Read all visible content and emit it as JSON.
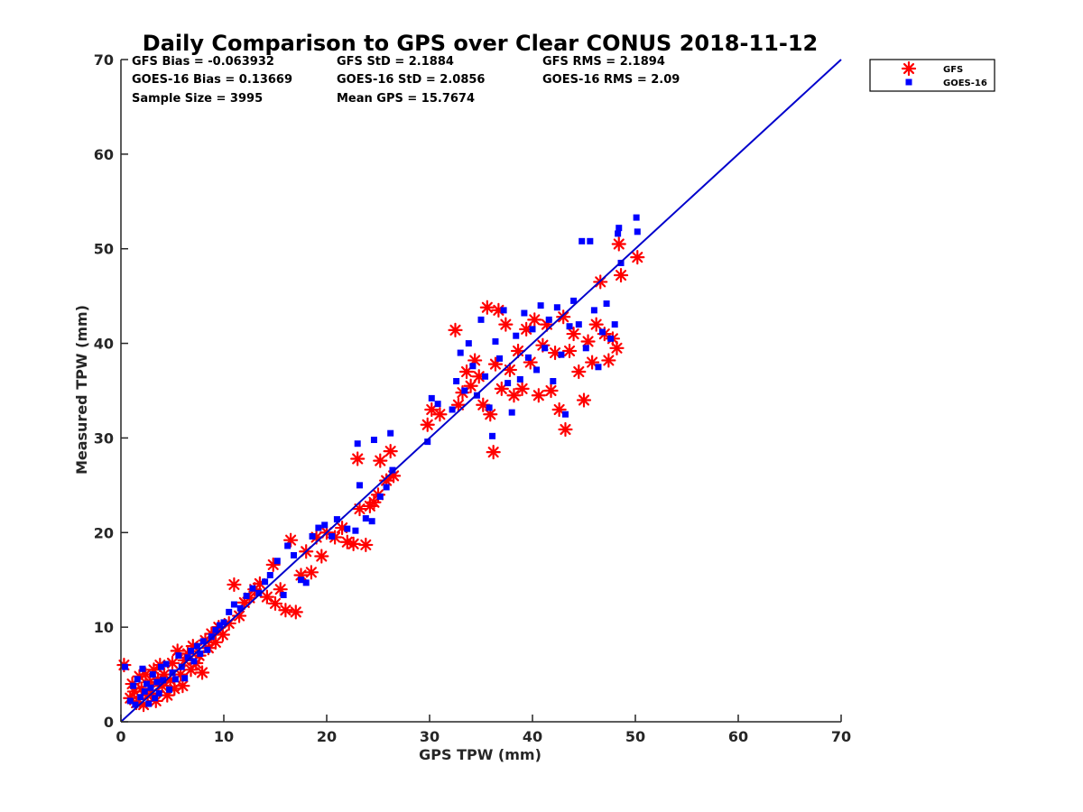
{
  "chart_data": {
    "type": "scatter",
    "title": "Daily Comparison to GPS over Clear CONUS 2018-11-12",
    "xlabel": "GPS TPW (mm)",
    "ylabel": "Measured TPW (mm)",
    "xlim": [
      0,
      70
    ],
    "ylim": [
      0,
      70
    ],
    "xticks": [
      "0",
      "10",
      "20",
      "30",
      "40",
      "50",
      "60",
      "70"
    ],
    "yticks": [
      "0",
      "10",
      "20",
      "30",
      "40",
      "50",
      "60",
      "70"
    ],
    "stats": [
      [
        "GFS Bias = -0.063932",
        "GFS StD = 2.1884",
        "GFS RMS = 2.1894"
      ],
      [
        "GOES-16 Bias = 0.13669",
        "GOES-16 StD = 2.0856",
        "GOES-16 RMS = 2.09"
      ],
      [
        "Sample Size = 3995",
        "Mean GPS = 15.7674",
        ""
      ]
    ],
    "legend": {
      "position": "outside-top-right"
    },
    "reference_line": {
      "name": "1:1 line",
      "color": "#0000cc",
      "points": [
        [
          0,
          0
        ],
        [
          70,
          70
        ]
      ]
    },
    "series": [
      {
        "name": "GFS",
        "marker": "asterisk",
        "color": "#ff0000",
        "points": [
          [
            0.3,
            6.0
          ],
          [
            0.9,
            2.5
          ],
          [
            1.1,
            4.0
          ],
          [
            1.3,
            3.2
          ],
          [
            1.5,
            2.0
          ],
          [
            1.8,
            4.8
          ],
          [
            2.0,
            3.5
          ],
          [
            2.2,
            1.8
          ],
          [
            2.4,
            5.0
          ],
          [
            2.6,
            2.8
          ],
          [
            2.8,
            4.2
          ],
          [
            3.0,
            3.0
          ],
          [
            3.2,
            5.5
          ],
          [
            3.4,
            2.2
          ],
          [
            3.6,
            4.5
          ],
          [
            3.8,
            6.0
          ],
          [
            4.0,
            3.8
          ],
          [
            4.2,
            5.0
          ],
          [
            4.5,
            2.8
          ],
          [
            4.8,
            4.4
          ],
          [
            5.0,
            6.2
          ],
          [
            5.2,
            3.5
          ],
          [
            5.5,
            7.5
          ],
          [
            5.8,
            5.0
          ],
          [
            6.0,
            3.8
          ],
          [
            6.2,
            6.5
          ],
          [
            6.5,
            7.2
          ],
          [
            6.8,
            5.5
          ],
          [
            7.0,
            8.0
          ],
          [
            7.3,
            6.2
          ],
          [
            7.6,
            7.0
          ],
          [
            7.9,
            5.2
          ],
          [
            8.2,
            8.6
          ],
          [
            8.5,
            7.8
          ],
          [
            8.8,
            9.3
          ],
          [
            9.2,
            8.4
          ],
          [
            9.5,
            10.0
          ],
          [
            9.9,
            9.2
          ],
          [
            10.5,
            10.4
          ],
          [
            11.0,
            14.5
          ],
          [
            11.5,
            11.2
          ],
          [
            12.0,
            12.6
          ],
          [
            12.5,
            13.1
          ],
          [
            13.0,
            14.0
          ],
          [
            13.5,
            14.6
          ],
          [
            14.2,
            13.2
          ],
          [
            14.8,
            16.6
          ],
          [
            15.0,
            12.5
          ],
          [
            15.5,
            14.0
          ],
          [
            16.0,
            11.8
          ],
          [
            16.5,
            19.2
          ],
          [
            17.0,
            11.6
          ],
          [
            17.5,
            15.5
          ],
          [
            18.0,
            18.0
          ],
          [
            18.5,
            15.8
          ],
          [
            19.0,
            19.5
          ],
          [
            19.5,
            17.5
          ],
          [
            20.0,
            20.0
          ],
          [
            20.8,
            19.5
          ],
          [
            21.5,
            20.5
          ],
          [
            22.0,
            19.0
          ],
          [
            22.6,
            18.8
          ],
          [
            23.0,
            27.8
          ],
          [
            23.2,
            22.5
          ],
          [
            23.8,
            18.7
          ],
          [
            24.2,
            22.8
          ],
          [
            24.6,
            23.2
          ],
          [
            25.0,
            24.0
          ],
          [
            25.2,
            27.6
          ],
          [
            25.8,
            25.5
          ],
          [
            26.2,
            28.6
          ],
          [
            26.5,
            26.0
          ],
          [
            29.8,
            31.4
          ],
          [
            30.2,
            33.0
          ],
          [
            31.0,
            32.5
          ],
          [
            32.5,
            41.4
          ],
          [
            32.8,
            33.5
          ],
          [
            33.2,
            34.8
          ],
          [
            33.6,
            37.0
          ],
          [
            34.0,
            35.5
          ],
          [
            34.4,
            38.2
          ],
          [
            34.8,
            36.5
          ],
          [
            35.2,
            33.5
          ],
          [
            35.6,
            43.8
          ],
          [
            35.9,
            32.5
          ],
          [
            36.2,
            28.5
          ],
          [
            36.4,
            37.8
          ],
          [
            36.7,
            43.5
          ],
          [
            37.0,
            35.2
          ],
          [
            37.4,
            42.0
          ],
          [
            37.8,
            37.2
          ],
          [
            38.2,
            34.5
          ],
          [
            38.6,
            39.2
          ],
          [
            39.0,
            35.2
          ],
          [
            39.4,
            41.5
          ],
          [
            39.8,
            38.0
          ],
          [
            40.2,
            42.5
          ],
          [
            40.6,
            34.5
          ],
          [
            41.0,
            39.8
          ],
          [
            41.4,
            42.0
          ],
          [
            41.8,
            35.0
          ],
          [
            42.2,
            39.0
          ],
          [
            42.6,
            33.0
          ],
          [
            43.0,
            42.8
          ],
          [
            43.2,
            30.9
          ],
          [
            43.6,
            39.2
          ],
          [
            44.0,
            41.0
          ],
          [
            44.5,
            37.0
          ],
          [
            45.0,
            34.0
          ],
          [
            45.4,
            40.2
          ],
          [
            45.8,
            38.0
          ],
          [
            46.2,
            42.0
          ],
          [
            46.6,
            46.5
          ],
          [
            47.0,
            41.0
          ],
          [
            47.4,
            38.2
          ],
          [
            47.8,
            40.5
          ],
          [
            48.2,
            39.5
          ],
          [
            48.4,
            50.5
          ],
          [
            48.6,
            47.2
          ],
          [
            50.2,
            49.1
          ]
        ]
      },
      {
        "name": "GOES-16",
        "marker": "square",
        "color": "#0000ff",
        "points": [
          [
            0.4,
            5.8
          ],
          [
            0.9,
            2.2
          ],
          [
            1.2,
            3.8
          ],
          [
            1.4,
            1.8
          ],
          [
            1.6,
            4.5
          ],
          [
            1.9,
            2.6
          ],
          [
            2.1,
            5.6
          ],
          [
            2.3,
            3.2
          ],
          [
            2.5,
            4.0
          ],
          [
            2.7,
            1.9
          ],
          [
            2.9,
            3.6
          ],
          [
            3.1,
            5.0
          ],
          [
            3.3,
            2.5
          ],
          [
            3.5,
            4.2
          ],
          [
            3.7,
            3.0
          ],
          [
            3.9,
            5.8
          ],
          [
            4.1,
            4.4
          ],
          [
            4.4,
            6.1
          ],
          [
            4.7,
            3.4
          ],
          [
            5.0,
            5.2
          ],
          [
            5.3,
            4.5
          ],
          [
            5.6,
            7.0
          ],
          [
            5.9,
            5.8
          ],
          [
            6.2,
            4.6
          ],
          [
            6.5,
            6.8
          ],
          [
            6.8,
            7.5
          ],
          [
            7.1,
            6.4
          ],
          [
            7.4,
            8.0
          ],
          [
            7.7,
            7.2
          ],
          [
            8.0,
            8.5
          ],
          [
            8.4,
            7.6
          ],
          [
            8.8,
            9.0
          ],
          [
            9.2,
            9.7
          ],
          [
            9.6,
            10.2
          ],
          [
            10.0,
            10.5
          ],
          [
            10.5,
            11.6
          ],
          [
            11.0,
            12.4
          ],
          [
            11.6,
            12.0
          ],
          [
            12.2,
            13.3
          ],
          [
            12.8,
            14.1
          ],
          [
            13.4,
            13.6
          ],
          [
            14.0,
            14.8
          ],
          [
            14.5,
            15.5
          ],
          [
            15.2,
            17.0
          ],
          [
            15.8,
            13.4
          ],
          [
            16.2,
            18.6
          ],
          [
            16.8,
            17.6
          ],
          [
            17.5,
            15.0
          ],
          [
            18.0,
            14.7
          ],
          [
            18.6,
            19.6
          ],
          [
            19.2,
            20.5
          ],
          [
            19.8,
            20.8
          ],
          [
            20.5,
            19.6
          ],
          [
            21.0,
            21.4
          ],
          [
            22.0,
            20.4
          ],
          [
            22.8,
            20.2
          ],
          [
            23.0,
            29.4
          ],
          [
            23.2,
            25.0
          ],
          [
            23.8,
            21.5
          ],
          [
            24.4,
            21.2
          ],
          [
            24.6,
            29.8
          ],
          [
            25.2,
            23.8
          ],
          [
            25.8,
            24.8
          ],
          [
            26.2,
            30.5
          ],
          [
            26.4,
            26.6
          ],
          [
            29.8,
            29.6
          ],
          [
            30.2,
            34.2
          ],
          [
            30.8,
            33.6
          ],
          [
            32.2,
            33.0
          ],
          [
            32.6,
            36.0
          ],
          [
            33.0,
            39.0
          ],
          [
            33.4,
            35.0
          ],
          [
            33.8,
            40.0
          ],
          [
            34.2,
            37.6
          ],
          [
            34.6,
            34.5
          ],
          [
            35.0,
            42.5
          ],
          [
            35.4,
            36.5
          ],
          [
            35.8,
            33.2
          ],
          [
            36.1,
            30.2
          ],
          [
            36.4,
            40.2
          ],
          [
            36.8,
            38.4
          ],
          [
            37.2,
            43.5
          ],
          [
            37.6,
            35.8
          ],
          [
            38.0,
            32.7
          ],
          [
            38.4,
            40.8
          ],
          [
            38.8,
            36.2
          ],
          [
            39.2,
            43.2
          ],
          [
            39.6,
            38.5
          ],
          [
            40.0,
            41.5
          ],
          [
            40.4,
            37.2
          ],
          [
            40.8,
            44.0
          ],
          [
            41.2,
            39.5
          ],
          [
            41.6,
            42.5
          ],
          [
            42.0,
            36.0
          ],
          [
            42.4,
            43.8
          ],
          [
            42.8,
            38.8
          ],
          [
            43.2,
            32.5
          ],
          [
            43.6,
            41.8
          ],
          [
            44.0,
            44.5
          ],
          [
            44.5,
            42.0
          ],
          [
            44.8,
            50.8
          ],
          [
            45.2,
            39.5
          ],
          [
            45.6,
            50.8
          ],
          [
            46.0,
            43.5
          ],
          [
            46.4,
            37.5
          ],
          [
            46.8,
            41.2
          ],
          [
            47.2,
            44.2
          ],
          [
            47.6,
            40.5
          ],
          [
            48.0,
            42.0
          ],
          [
            48.3,
            51.6
          ],
          [
            48.4,
            52.2
          ],
          [
            48.6,
            48.5
          ],
          [
            50.1,
            53.3
          ],
          [
            50.2,
            51.8
          ]
        ]
      }
    ]
  }
}
